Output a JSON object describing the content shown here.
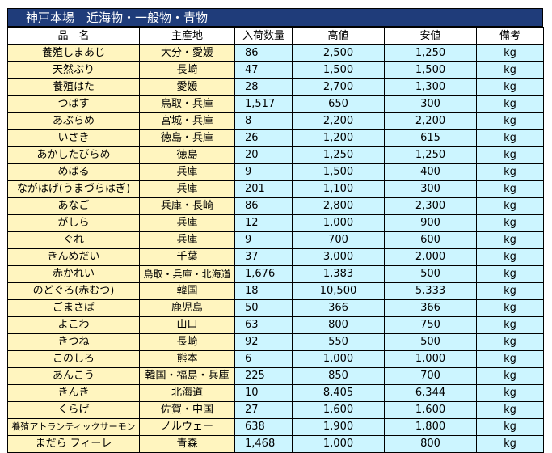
{
  "title": "神戸本場　近海物・一般物・青物",
  "headers": [
    "品　名",
    "主産地",
    "入荷数量",
    "高値",
    "安値",
    "備考"
  ],
  "rows": [
    {
      "name": "養殖しまあじ",
      "origin": "大分・愛媛",
      "qty": "86",
      "high": "2,500",
      "low": "1,250",
      "unit": "kg"
    },
    {
      "name": "天然ぶり",
      "origin": "長崎",
      "qty": "47",
      "high": "1,500",
      "low": "1,500",
      "unit": "kg"
    },
    {
      "name": "養殖はた",
      "origin": "愛媛",
      "qty": "28",
      "high": "2,700",
      "low": "1,300",
      "unit": "kg"
    },
    {
      "name": "つばす",
      "origin": "鳥取・兵庫",
      "qty": "1,517",
      "high": "650",
      "low": "300",
      "unit": "kg"
    },
    {
      "name": "あぶらめ",
      "origin": "宮城・兵庫",
      "qty": "8",
      "high": "2,200",
      "low": "2,200",
      "unit": "kg"
    },
    {
      "name": "いさき",
      "origin": "徳島・兵庫",
      "qty": "26",
      "high": "1,200",
      "low": "615",
      "unit": "kg"
    },
    {
      "name": "あかしたびらめ",
      "origin": "徳島",
      "qty": "20",
      "high": "1,250",
      "low": "1,250",
      "unit": "kg"
    },
    {
      "name": "めばる",
      "origin": "兵庫",
      "qty": "9",
      "high": "1,500",
      "low": "400",
      "unit": "kg"
    },
    {
      "name": "ながはげ(うまづらはぎ)",
      "origin": "兵庫",
      "qty": "201",
      "high": "1,100",
      "low": "300",
      "unit": "kg"
    },
    {
      "name": "あなご",
      "origin": "兵庫・長崎",
      "qty": "86",
      "high": "2,800",
      "low": "2,300",
      "unit": "kg"
    },
    {
      "name": "がしら",
      "origin": "兵庫",
      "qty": "12",
      "high": "1,000",
      "low": "900",
      "unit": "kg"
    },
    {
      "name": "ぐれ",
      "origin": "兵庫",
      "qty": "9",
      "high": "700",
      "low": "600",
      "unit": "kg"
    },
    {
      "name": "きんめだい",
      "origin": "千葉",
      "qty": "37",
      "high": "3,000",
      "low": "2,000",
      "unit": "kg"
    },
    {
      "name": "赤かれい",
      "origin": "鳥取・兵庫・北海道",
      "qty": "1,676",
      "high": "1,383",
      "low": "500",
      "unit": "kg"
    },
    {
      "name": "のどぐろ(赤むつ)",
      "origin": "韓国",
      "qty": "18",
      "high": "10,500",
      "low": "5,333",
      "unit": "kg"
    },
    {
      "name": "ごまさば",
      "origin": "鹿児島",
      "qty": "50",
      "high": "366",
      "low": "366",
      "unit": "kg"
    },
    {
      "name": "よこわ",
      "origin": "山口",
      "qty": "63",
      "high": "800",
      "low": "750",
      "unit": "kg"
    },
    {
      "name": "きつね",
      "origin": "長崎",
      "qty": "92",
      "high": "550",
      "low": "500",
      "unit": "kg"
    },
    {
      "name": "このしろ",
      "origin": "熊本",
      "qty": "6",
      "high": "1,000",
      "low": "1,000",
      "unit": "kg"
    },
    {
      "name": "あんこう",
      "origin": "韓国・福島・兵庫",
      "qty": "225",
      "high": "850",
      "low": "700",
      "unit": "kg"
    },
    {
      "name": "きんき",
      "origin": "北海道",
      "qty": "10",
      "high": "8,405",
      "low": "6,344",
      "unit": "kg"
    },
    {
      "name": "くらげ",
      "origin": "佐賀・中国",
      "qty": "27",
      "high": "1,600",
      "low": "1,600",
      "unit": "kg"
    },
    {
      "name": "養殖アトランティックサーモン",
      "origin": "ノルウェー",
      "qty": "638",
      "high": "1,900",
      "low": "1,800",
      "unit": "kg"
    },
    {
      "name": "まだら フィーレ",
      "origin": "青森",
      "qty": "1,468",
      "high": "1,000",
      "low": "800",
      "unit": "kg"
    }
  ]
}
